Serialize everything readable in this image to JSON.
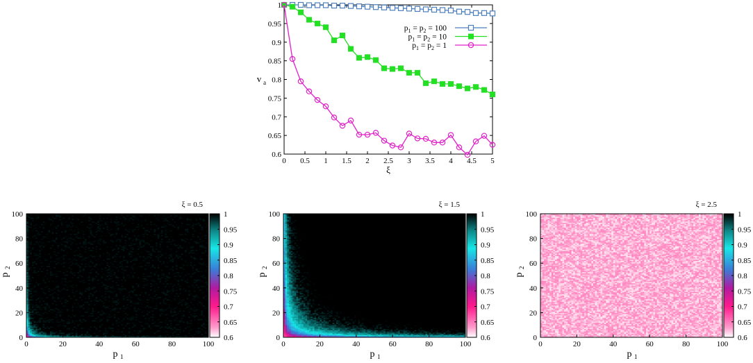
{
  "chart_data": [
    {
      "type": "line",
      "title": "",
      "xlabel": "ξ",
      "ylabel": "v",
      "ylabel_sub": "a",
      "xlim": [
        0,
        5
      ],
      "ylim": [
        0.6,
        1
      ],
      "x_ticks": [
        "0",
        "0.5",
        "1",
        "1.5",
        "2",
        "2.5",
        "3",
        "3.5",
        "4",
        "4.5",
        "5"
      ],
      "y_ticks": [
        "0.6",
        "0.65",
        "0.7",
        "0.75",
        "0.8",
        "0.85",
        "0.9",
        "0.95",
        "1"
      ],
      "x": [
        0,
        0.2,
        0.4,
        0.6,
        0.8,
        1.0,
        1.2,
        1.4,
        1.6,
        1.8,
        2.0,
        2.2,
        2.4,
        2.6,
        2.8,
        3.0,
        3.2,
        3.4,
        3.6,
        3.8,
        4.0,
        4.2,
        4.4,
        4.6,
        4.8,
        5.0
      ],
      "legend_position": "top-right",
      "series": [
        {
          "name": "p1 = p2 = 100",
          "label_parts": [
            "p",
            "1",
            " = p",
            "2",
            " = 100"
          ],
          "color": "#4a7ebf",
          "marker": "open-square",
          "values": [
            1.0,
            1.0,
            1.0,
            0.999,
            0.999,
            0.999,
            0.998,
            0.998,
            0.997,
            0.996,
            0.995,
            0.994,
            0.993,
            0.992,
            0.991,
            0.99,
            0.989,
            0.988,
            0.987,
            0.986,
            0.985,
            0.982,
            0.981,
            0.978,
            0.978,
            0.977
          ]
        },
        {
          "name": "p1 = p2 = 10",
          "label_parts": [
            "p",
            "1",
            " = p",
            "2",
            " = 10"
          ],
          "color": "#22e022",
          "marker": "filled-square",
          "values": [
            1.0,
            0.995,
            0.98,
            0.96,
            0.95,
            0.94,
            0.905,
            0.918,
            0.882,
            0.858,
            0.86,
            0.852,
            0.83,
            0.828,
            0.83,
            0.818,
            0.818,
            0.79,
            0.795,
            0.788,
            0.788,
            0.782,
            0.776,
            0.78,
            0.772,
            0.76
          ]
        },
        {
          "name": "p1 = p2 = 1",
          "label_parts": [
            "p",
            "1",
            " = p",
            "2",
            " = 1"
          ],
          "color": "#e020c8",
          "marker": "open-circle",
          "values": [
            1.0,
            0.855,
            0.795,
            0.768,
            0.745,
            0.728,
            0.698,
            0.676,
            0.69,
            0.652,
            0.652,
            0.657,
            0.636,
            0.623,
            0.618,
            0.655,
            0.642,
            0.641,
            0.631,
            0.631,
            0.651,
            0.618,
            0.598,
            0.634,
            0.649,
            0.625
          ]
        }
      ]
    },
    {
      "type": "heatmap",
      "title": "ξ = 0.5",
      "xi": 0.5,
      "xlabel": "p",
      "xlabel_sub": "1",
      "ylabel": "p",
      "ylabel_sub": "2",
      "xlim": [
        0,
        100
      ],
      "ylim": [
        0,
        100
      ],
      "x_ticks": [
        "0",
        "20",
        "40",
        "60",
        "80",
        "100"
      ],
      "y_ticks": [
        "0",
        "20",
        "40",
        "60",
        "80",
        "100"
      ],
      "colorbar_range": [
        0.6,
        1
      ],
      "colorbar_ticks": [
        "0.6",
        "0.65",
        "0.7",
        "0.75",
        "0.8",
        "0.85",
        "0.9",
        "0.95",
        "1"
      ]
    },
    {
      "type": "heatmap",
      "title": "ξ = 1.5",
      "xi": 1.5,
      "xlabel": "p",
      "xlabel_sub": "1",
      "ylabel": "p",
      "ylabel_sub": "2",
      "xlim": [
        0,
        100
      ],
      "ylim": [
        0,
        100
      ],
      "x_ticks": [
        "0",
        "20",
        "40",
        "60",
        "80",
        "100"
      ],
      "y_ticks": [
        "0",
        "20",
        "40",
        "60",
        "80",
        "100"
      ],
      "colorbar_range": [
        0.6,
        1
      ],
      "colorbar_ticks": [
        "0.6",
        "0.65",
        "0.7",
        "0.75",
        "0.8",
        "0.85",
        "0.9",
        "0.95",
        "1"
      ]
    },
    {
      "type": "heatmap",
      "title": "ξ = 2.5",
      "xi": 2.5,
      "xlabel": "p",
      "xlabel_sub": "1",
      "ylabel": "p",
      "ylabel_sub": "2",
      "xlim": [
        0,
        100
      ],
      "ylim": [
        0,
        100
      ],
      "x_ticks": [
        "0",
        "20",
        "40",
        "60",
        "80",
        "100"
      ],
      "y_ticks": [
        "0",
        "20",
        "40",
        "60",
        "80",
        "100"
      ],
      "colorbar_range": [
        0.6,
        1
      ],
      "colorbar_ticks": [
        "0.6",
        "0.65",
        "0.7",
        "0.75",
        "0.8",
        "0.85",
        "0.9",
        "0.95",
        "1"
      ]
    }
  ],
  "colormap": [
    "#ffffff",
    "#ff1a8c",
    "#3a7dd8",
    "#18e6e6",
    "#000000"
  ]
}
